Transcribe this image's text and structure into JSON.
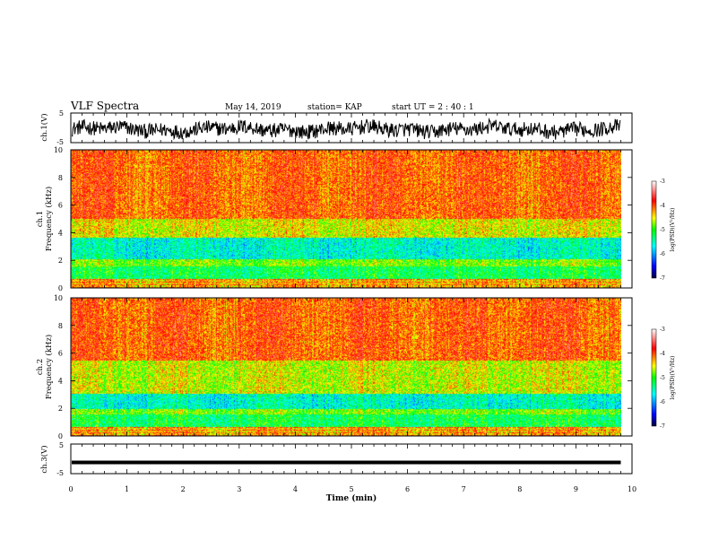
{
  "header": {
    "title": "VLF Spectra",
    "date": "May 14, 2019",
    "station": "station= KAP",
    "start": "start  UT =   2 : 40 : 1"
  },
  "chart_data": [
    {
      "type": "line",
      "id": "ch1-waveform",
      "ylabel": "ch.1(V)",
      "yticks": [
        "5",
        "-5"
      ],
      "ylim": [
        -5,
        5
      ],
      "xlim": [
        0,
        10
      ],
      "description_values": {
        "mean": -0.5,
        "amplitude": 2.5
      },
      "data_end_min": 9.8
    },
    {
      "type": "heatmap",
      "id": "ch1-spectrogram",
      "ylabel": "ch.1\nFrequency (kHz)",
      "ylabel_line1": "ch.1",
      "ylabel_line2": "Frequency (kHz)",
      "yticks": [
        "0",
        "2",
        "4",
        "6",
        "8",
        "10"
      ],
      "ylim": [
        0,
        10
      ],
      "xlim": [
        0,
        10
      ],
      "data_end_min": 9.8,
      "colorbar": {
        "ticks": [
          "-3",
          "-4",
          "-5",
          "-6",
          "-7"
        ],
        "range": [
          -7,
          -3
        ],
        "label": "log(PSD)(V²/Hz)",
        "label_main": "log(PSD)(V",
        "label_sup": "2",
        "label_tail": "/Hz)"
      }
    },
    {
      "type": "heatmap",
      "id": "ch2-spectrogram",
      "ylabel": "ch.2\nFrequency (kHz)",
      "ylabel_line1": "ch.2",
      "ylabel_line2": "Frequency (kHz)",
      "yticks": [
        "0",
        "2",
        "4",
        "6",
        "8",
        "10"
      ],
      "ylim": [
        0,
        10
      ],
      "xlim": [
        0,
        10
      ],
      "data_end_min": 9.8,
      "colorbar": {
        "ticks": [
          "-3",
          "-4",
          "-5",
          "-6",
          "-7"
        ],
        "range": [
          -7,
          -3
        ],
        "label": "log(PSD)(V²/Hz)",
        "label_main": "log(PSD)(V",
        "label_sup": "2",
        "label_tail": "/Hz)"
      }
    },
    {
      "type": "line",
      "id": "ch3-waveform",
      "ylabel": "ch.3(V)",
      "yticks": [
        "5",
        "-5"
      ],
      "ylim": [
        -5,
        5
      ],
      "xlim": [
        0,
        10
      ],
      "values_constant": -1.2,
      "data_end_min": 9.8
    }
  ],
  "xaxis": {
    "label": "Time (min)",
    "ticks": [
      "0",
      "1",
      "2",
      "3",
      "4",
      "5",
      "6",
      "7",
      "8",
      "9",
      "10"
    ]
  },
  "colors": {
    "scale": [
      "#000060",
      "#0000ff",
      "#00ffff",
      "#00ff00",
      "#ffff00",
      "#ff0000",
      "#ffffff"
    ]
  }
}
